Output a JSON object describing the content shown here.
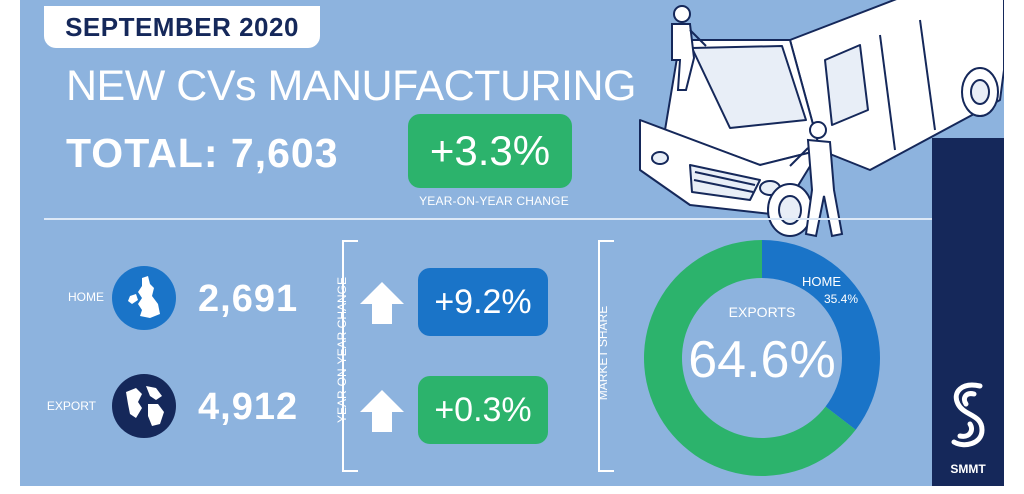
{
  "header": {
    "date": "SEPTEMBER 2020",
    "title": "NEW CVs MANUFACTURING",
    "total_label": "TOTAL:",
    "total_value": "7,603",
    "total_change": "+3.3%",
    "total_change_label": "YEAR-ON-YEAR CHANGE"
  },
  "rows": [
    {
      "label": "HOME",
      "value": "2,691",
      "change": "+9.2%",
      "change_color": "#1a74c8"
    },
    {
      "label": "EXPORT",
      "value": "4,912",
      "change": "+0.3%",
      "change_color": "#2cb36c"
    }
  ],
  "yoy_vertical_label": "YEAR-ON-YEAR CHANGE",
  "market_share_label": "MARKET SHARE",
  "donut": {
    "exports_label": "EXPORTS",
    "exports_value": "64.6%",
    "home_label": "HOME",
    "home_value": "35.4%"
  },
  "brand": {
    "name": "SMMT"
  },
  "colors": {
    "background": "#8db3de",
    "navy": "#15285a",
    "green": "#2cb36c",
    "blue": "#1a74c8"
  },
  "icons": [
    "uk-map-icon",
    "globe-icon",
    "up-arrow-icon",
    "van-illustration",
    "smmt-logo-icon"
  ],
  "chart_data": {
    "type": "pie",
    "categories": [
      "HOME",
      "EXPORTS"
    ],
    "values": [
      35.4,
      64.6
    ],
    "colors": [
      "#1a74c8",
      "#2cb36c"
    ],
    "title": "MARKET SHARE",
    "donut": true
  }
}
